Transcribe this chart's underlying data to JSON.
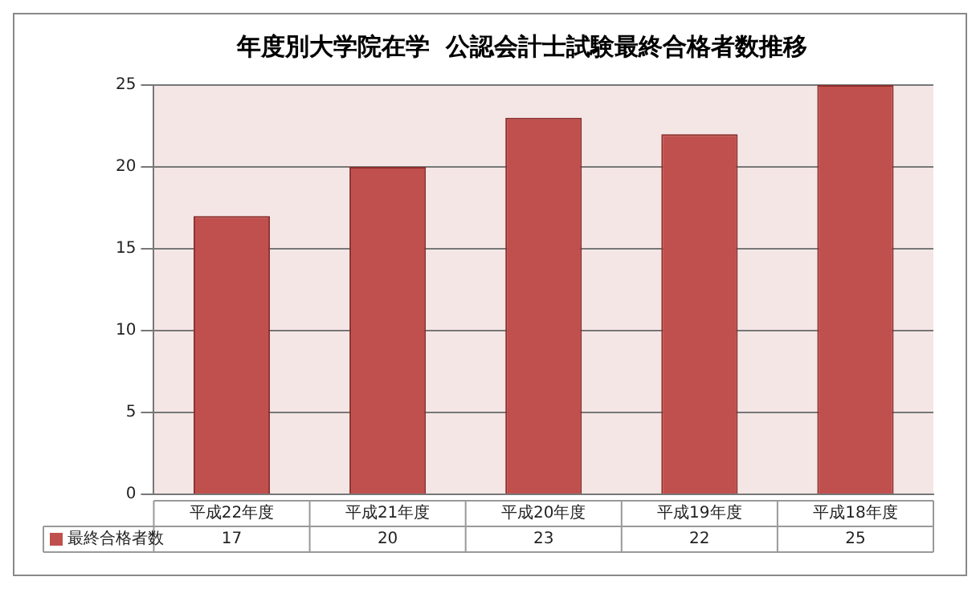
{
  "chart_data": {
    "type": "bar",
    "title": "年度別大学院在学  公認会計士試験最終合格者数推移",
    "categories": [
      "平成22年度",
      "平成21年度",
      "平成20年度",
      "平成19年度",
      "平成18年度"
    ],
    "series": [
      {
        "name": "最終合格者数",
        "color": "#c0504d",
        "values": [
          17,
          20,
          23,
          22,
          25
        ]
      }
    ],
    "ylim": [
      0,
      25
    ],
    "yticks": [
      0,
      5,
      10,
      15,
      20,
      25
    ],
    "grid": "y",
    "legend": "bottom",
    "data_labels": true
  }
}
